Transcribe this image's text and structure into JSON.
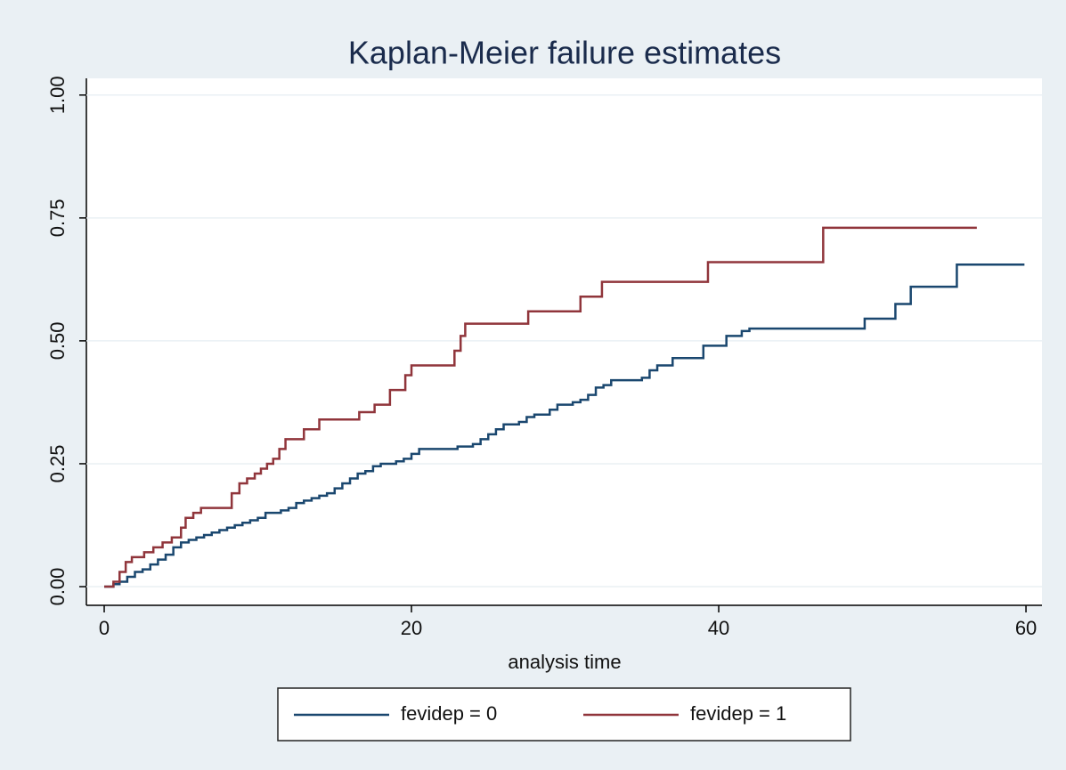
{
  "chart_data": {
    "type": "step",
    "title": "Kaplan-Meier failure estimates",
    "x_label": "analysis time",
    "xlim": [
      -1.16,
      61.04
    ],
    "ylim": [
      -0.038,
      1.034
    ],
    "xticks": [
      0,
      20,
      40,
      60
    ],
    "yticks": [
      {
        "value": 0,
        "label": "0.00"
      },
      {
        "value": 0.25,
        "label": "0.25"
      },
      {
        "value": 0.5,
        "label": "0.50"
      },
      {
        "value": 0.75,
        "label": "0.75"
      },
      {
        "value": 1,
        "label": "1.00"
      }
    ],
    "grid": true,
    "legend": "bottom",
    "series": [
      {
        "name": "fevidep = 0",
        "color": "#1a476f",
        "x": [
          0,
          0.6,
          1.0,
          1.5,
          2,
          2.5,
          3,
          3.5,
          4,
          4.5,
          5,
          5.5,
          6,
          6.5,
          7,
          7.5,
          8,
          8.5,
          9,
          9.5,
          10,
          10.5,
          11.5,
          12,
          12.5,
          13,
          13.5,
          14,
          14.5,
          15,
          15.5,
          16,
          16.5,
          17,
          17.5,
          18,
          19,
          19.5,
          20,
          20.5,
          23,
          24,
          24.5,
          25,
          25.5,
          26,
          27,
          27.5,
          28,
          29,
          29.5,
          30.5,
          31,
          31.5,
          32,
          32.5,
          33,
          35,
          35.5,
          36,
          37,
          39,
          40.5,
          41.5,
          42,
          49.5,
          51.5,
          52.5,
          55.5,
          59.9
        ],
        "values": [
          0,
          0.005,
          0.01,
          0.02,
          0.03,
          0.035,
          0.045,
          0.055,
          0.065,
          0.08,
          0.09,
          0.095,
          0.1,
          0.105,
          0.11,
          0.115,
          0.12,
          0.125,
          0.13,
          0.135,
          0.14,
          0.15,
          0.155,
          0.16,
          0.17,
          0.175,
          0.18,
          0.185,
          0.19,
          0.2,
          0.21,
          0.22,
          0.23,
          0.235,
          0.245,
          0.25,
          0.255,
          0.26,
          0.27,
          0.28,
          0.285,
          0.29,
          0.3,
          0.31,
          0.32,
          0.33,
          0.335,
          0.345,
          0.35,
          0.36,
          0.37,
          0.375,
          0.38,
          0.39,
          0.405,
          0.41,
          0.42,
          0.425,
          0.44,
          0.45,
          0.465,
          0.49,
          0.51,
          0.52,
          0.525,
          0.545,
          0.575,
          0.61,
          0.655,
          0.655
        ]
      },
      {
        "name": "fevidep = 1",
        "color": "#90353b",
        "x": [
          0,
          0.6,
          1.0,
          1.4,
          1.8,
          2.6,
          3.2,
          3.8,
          4.4,
          5.0,
          5.3,
          5.8,
          6.3,
          8.3,
          8.8,
          9.3,
          9.8,
          10.2,
          10.6,
          11.0,
          11.4,
          11.8,
          13.0,
          14.0,
          16.6,
          17.6,
          18.6,
          19.6,
          20.0,
          22.8,
          23.2,
          23.5,
          27.6,
          31.0,
          32.4,
          39.3,
          46.8,
          56.8
        ],
        "values": [
          0,
          0.01,
          0.03,
          0.05,
          0.06,
          0.07,
          0.08,
          0.09,
          0.1,
          0.12,
          0.14,
          0.15,
          0.16,
          0.19,
          0.21,
          0.22,
          0.23,
          0.24,
          0.25,
          0.26,
          0.28,
          0.3,
          0.32,
          0.34,
          0.355,
          0.37,
          0.4,
          0.43,
          0.45,
          0.48,
          0.51,
          0.535,
          0.56,
          0.59,
          0.62,
          0.66,
          0.73,
          0.73
        ]
      }
    ]
  }
}
